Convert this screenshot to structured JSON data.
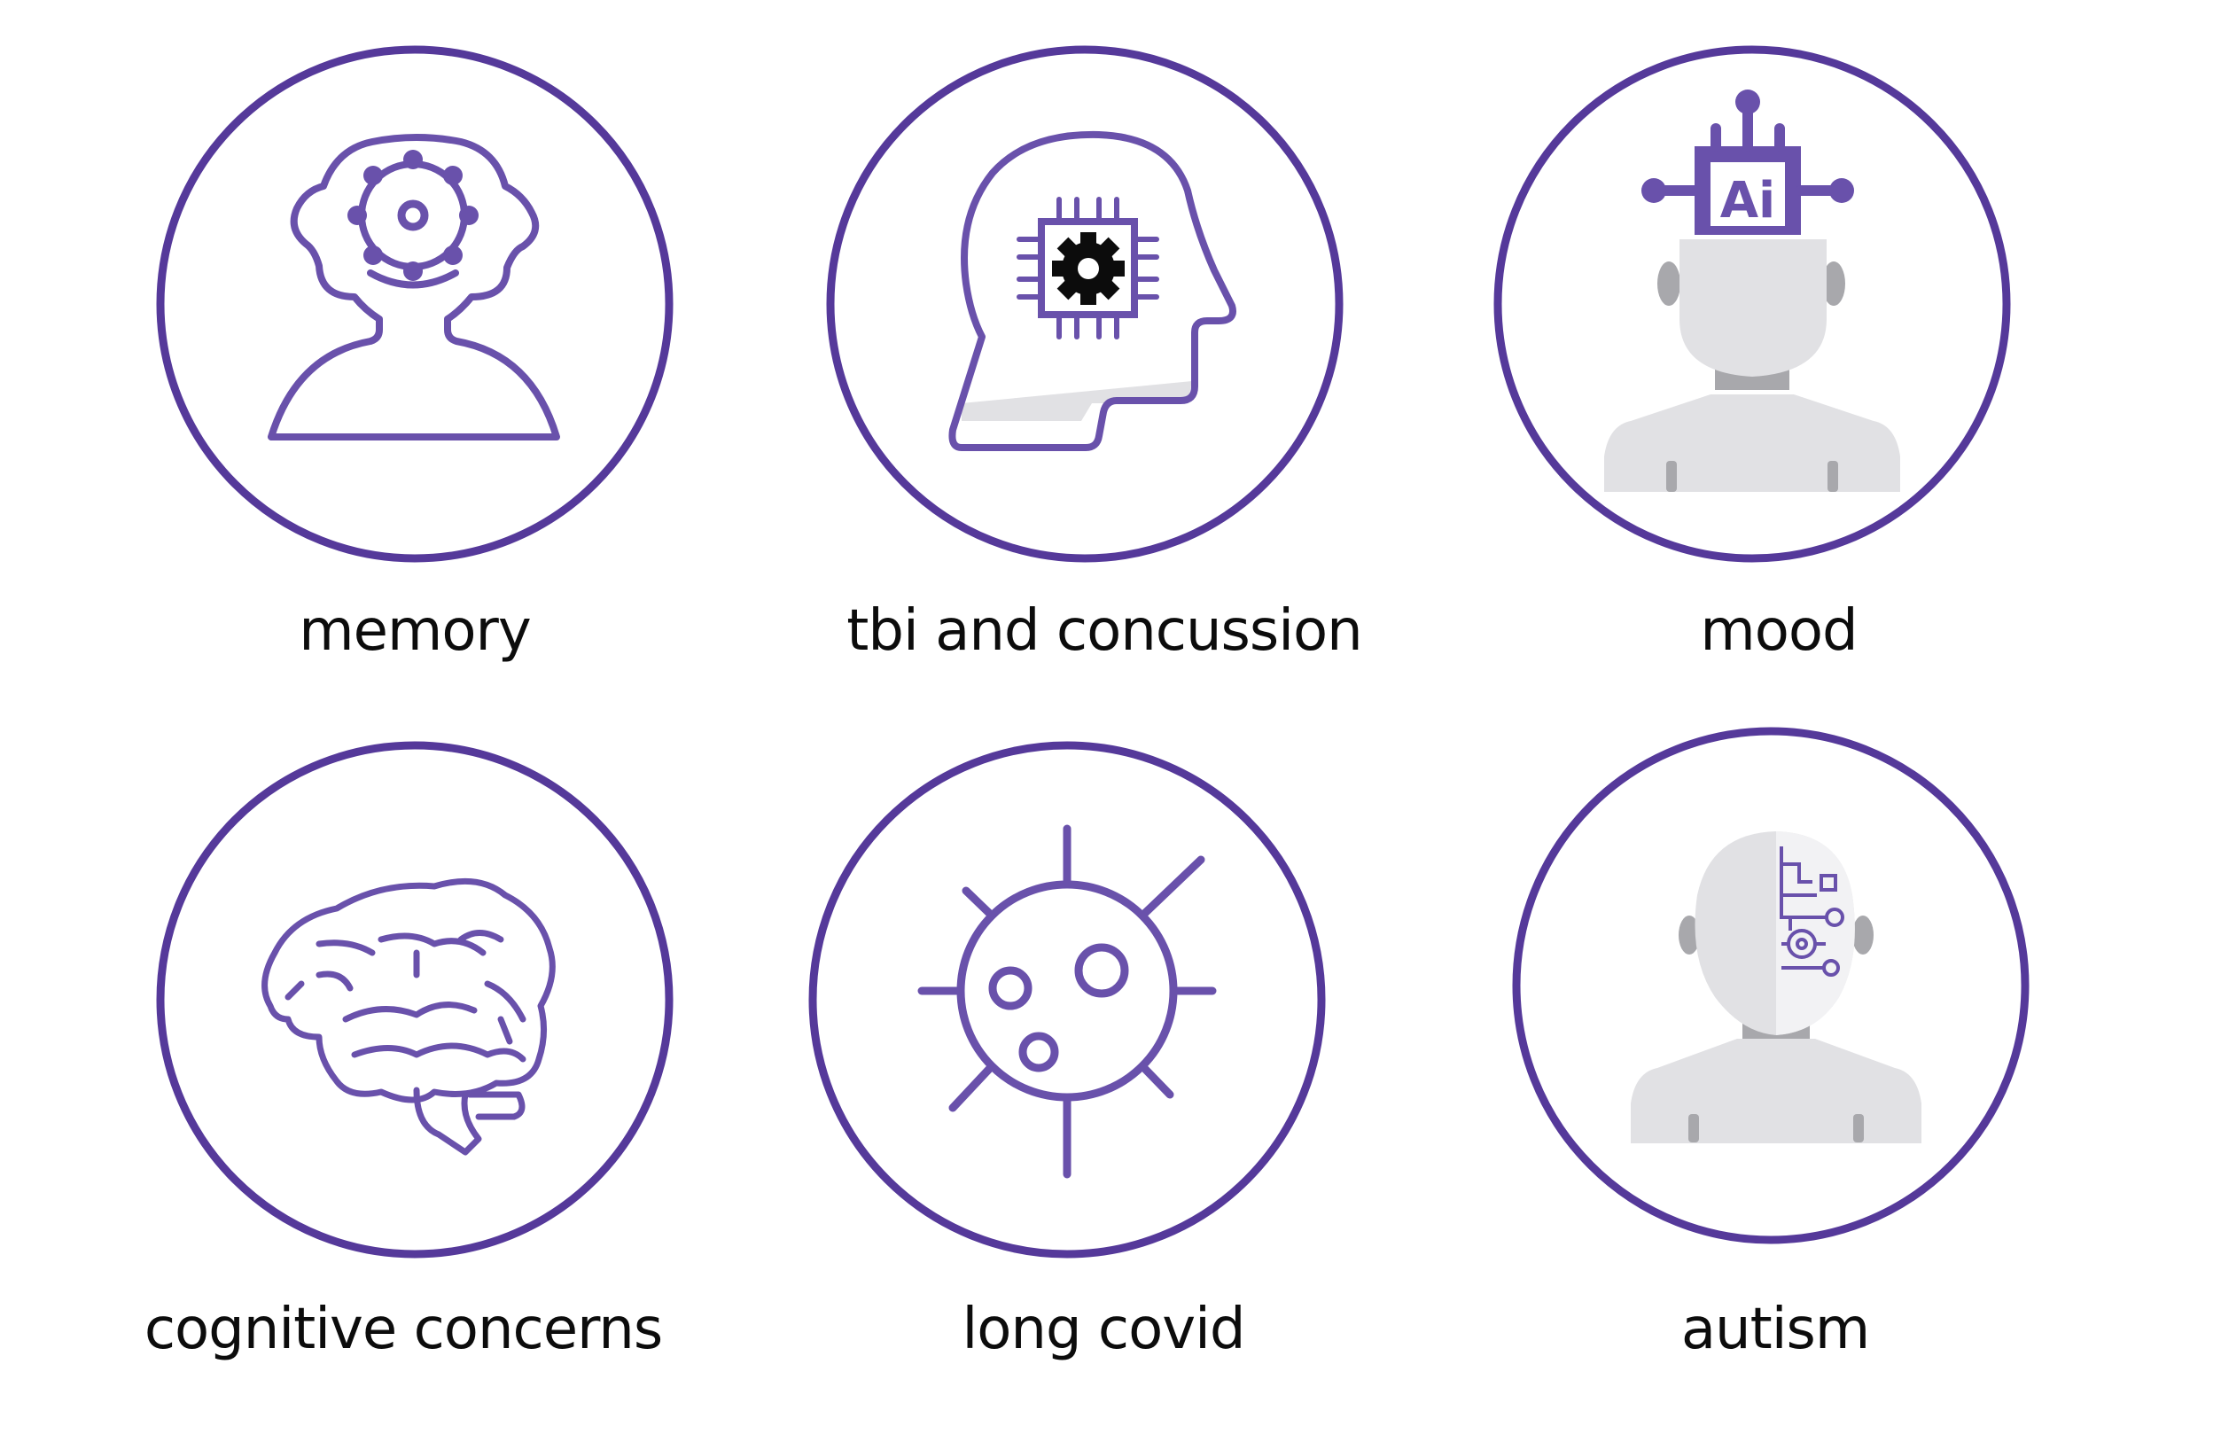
{
  "colors": {
    "accent": "#55399a",
    "icon": "#6951ab",
    "gray": "#e1e1e4",
    "dark_gray": "#a8a8ac",
    "text": "#0c0c0c"
  },
  "cards": [
    {
      "label": "memory",
      "icon": "head-gear-icon"
    },
    {
      "label": "tbi and concussion",
      "icon": "head-chip-icon"
    },
    {
      "label": "mood",
      "icon": "ai-head-icon"
    },
    {
      "label": "cognitive concerns",
      "icon": "brain-icon"
    },
    {
      "label": "long covid",
      "icon": "virus-icon"
    },
    {
      "label": "autism",
      "icon": "circuit-head-icon"
    }
  ],
  "ai_chip_text": "Ai"
}
